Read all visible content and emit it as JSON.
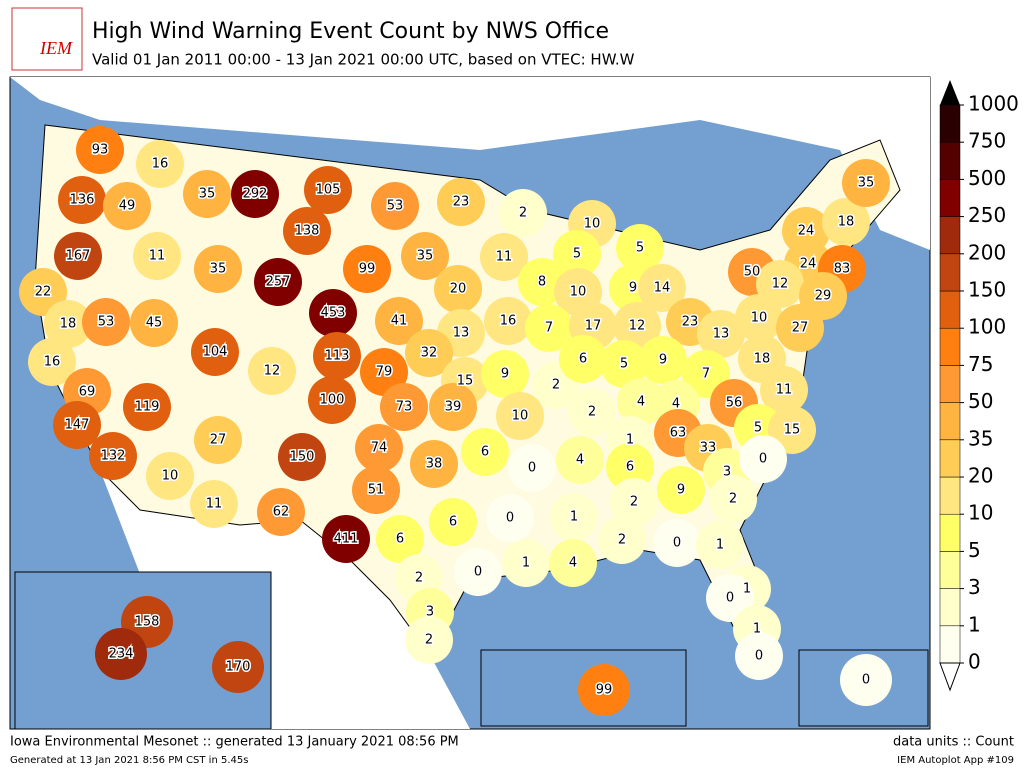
{
  "header": {
    "logo": "IEM",
    "title": "High Wind Warning Event Count by NWS Office",
    "subtitle": "Valid 01 Jan 2011 00:00 - 13 Jan 2021 00:00 UTC, based on VTEC: HW.W"
  },
  "counts": [
    93,
    16,
    136,
    49,
    35,
    292,
    105,
    53,
    23,
    2,
    10,
    5,
    167,
    11,
    35,
    138,
    257,
    99,
    35,
    20,
    11,
    8,
    5,
    10,
    9,
    14,
    50,
    24,
    18,
    35,
    24,
    83,
    12,
    29,
    22,
    18,
    53,
    45,
    453,
    41,
    13,
    16,
    7,
    17,
    12,
    23,
    13,
    10,
    27,
    16,
    104,
    12,
    113,
    32,
    79,
    15,
    9,
    2,
    6,
    5,
    9,
    7,
    18,
    11,
    69,
    119,
    100,
    73,
    39,
    10,
    2,
    4,
    4,
    56,
    147,
    27,
    74,
    6,
    1,
    63,
    33,
    5,
    15,
    132,
    150,
    38,
    0,
    4,
    6,
    3,
    0,
    10,
    51,
    9,
    2,
    11,
    62,
    6,
    0,
    1,
    2,
    411,
    6,
    2,
    0,
    1,
    1,
    4,
    2,
    0,
    1,
    0,
    3,
    1,
    2,
    0,
    158,
    234,
    170,
    99,
    0
  ],
  "colorbar": {
    "ticks": [
      0,
      1,
      3,
      5,
      10,
      20,
      35,
      50,
      75,
      100,
      150,
      200,
      250,
      500,
      750,
      1000
    ],
    "colors": [
      "#fffff0",
      "#ffffcc",
      "#ffff99",
      "#ffff66",
      "#ffe680",
      "#ffcc55",
      "#ffb340",
      "#ff9933",
      "#ff8010",
      "#e0600f",
      "#c04510",
      "#a02a0c",
      "#800000",
      "#550000",
      "#2a0000"
    ]
  },
  "footer": {
    "left": "Iowa Environmental Mesonet :: generated 13 January 2021 08:56 PM",
    "left_small": "Generated at 13 Jan 2021 8:56 PM CST in 5.45s",
    "right": "data units :: Count",
    "right_small": "IEM Autoplot App #109"
  }
}
